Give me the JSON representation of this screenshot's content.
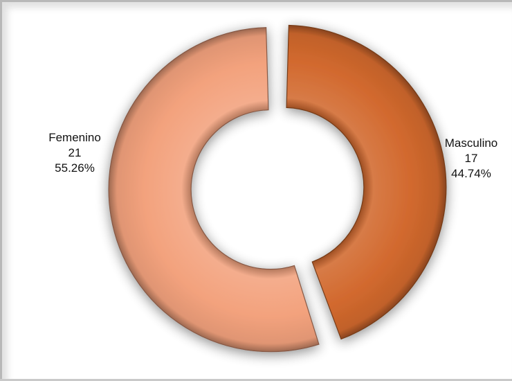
{
  "chart_data": {
    "type": "pie",
    "donut": true,
    "slices": [
      {
        "label": "Masculino",
        "value": 17,
        "percent": "44.74%",
        "color": "#d2692e"
      },
      {
        "label": "Femenino",
        "value": 21,
        "percent": "55.26%",
        "color": "#f3a27d"
      }
    ],
    "title": "",
    "legend": "none"
  }
}
